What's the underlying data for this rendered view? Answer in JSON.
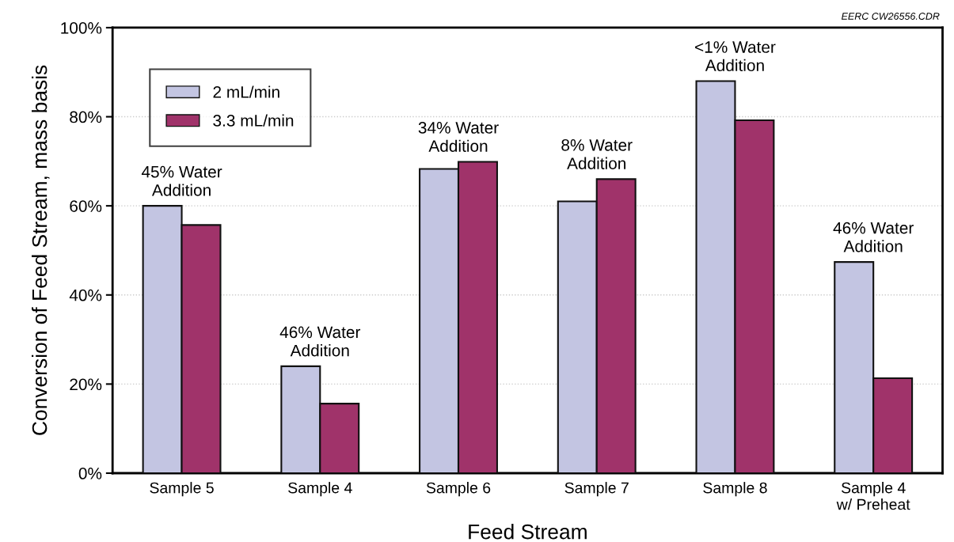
{
  "chart_data": {
    "type": "bar",
    "xlabel": "Feed Stream",
    "ylabel": "Conversion of Feed Stream, mass basis",
    "categories": [
      "Sample 5",
      "Sample 4",
      "Sample 6",
      "Sample 7",
      "Sample 8",
      "Sample 4\nw/ Preheat"
    ],
    "series": [
      {
        "name": "2 mL/min",
        "color": "#c3c5e2",
        "values": [
          60,
          24,
          68.3,
          61,
          88,
          47.4
        ]
      },
      {
        "name": "3.3 mL/min",
        "color": "#a0336a",
        "values": [
          55.7,
          15.6,
          69.9,
          66,
          79.2,
          21.3
        ]
      }
    ],
    "ylim": [
      0,
      100
    ],
    "yticks": [
      {
        "value": 0,
        "label": "0%"
      },
      {
        "value": 20,
        "label": "20%"
      },
      {
        "value": 40,
        "label": "40%"
      },
      {
        "value": 60,
        "label": "60%"
      },
      {
        "value": 80,
        "label": "80%"
      },
      {
        "value": 100,
        "label": "100%"
      }
    ],
    "grid": "y",
    "legend": "top left",
    "annotations": [
      {
        "text": "45% Water\nAddition",
        "x": "Sample 5",
        "y": 60
      },
      {
        "text": "46% Water\nAddition",
        "x": "Sample 4",
        "y": 24
      },
      {
        "text": "34% Water\nAddition",
        "x": "Sample 6",
        "y": 69.9
      },
      {
        "text": "8% Water\nAddition",
        "x": "Sample 7",
        "y": 66
      },
      {
        "text": "<1% Water\nAddition",
        "x": "Sample 8",
        "y": 88
      },
      {
        "text": "46% Water\nAddition",
        "x": "Sample 4\nw/ Preheat",
        "y": 47.4
      },
      "EERC CW26556.CDR"
    ]
  }
}
